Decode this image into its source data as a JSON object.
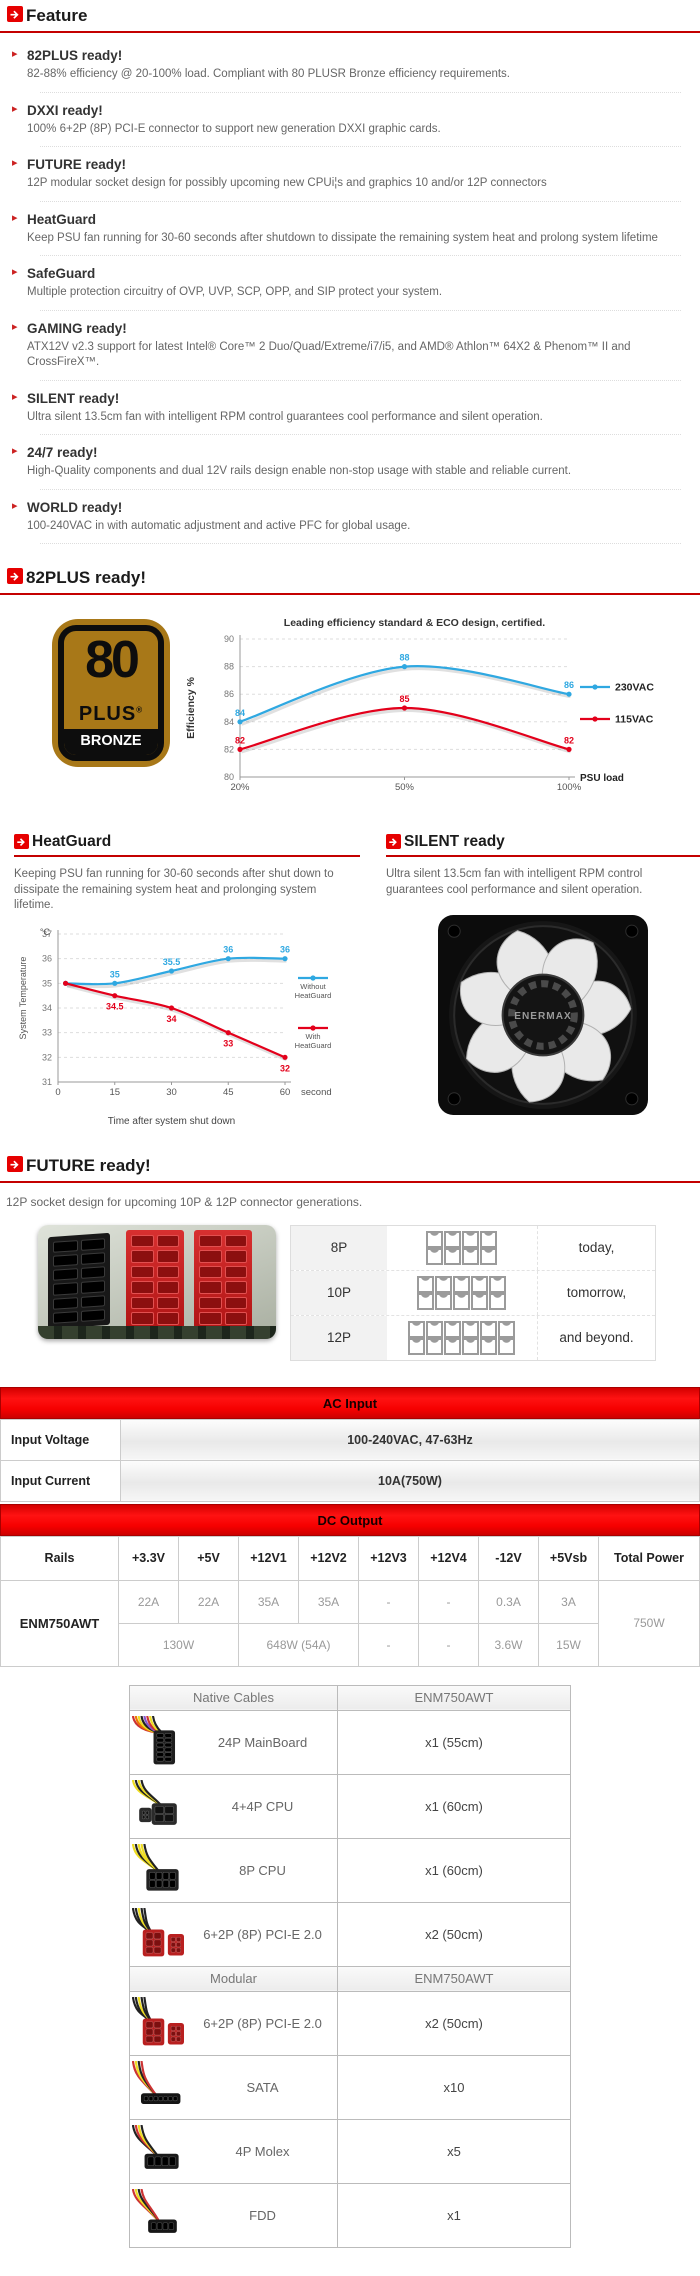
{
  "accent": {
    "red": "#e60000",
    "underline": "#c40000",
    "blue": "#2fa8e1",
    "chart_red": "#e3001b"
  },
  "feature": {
    "title": "Feature",
    "items": [
      {
        "title": "82PLUS ready!",
        "desc": "82-88% efficiency @ 20-100% load. Compliant with 80 PLUSR Bronze efficiency requirements."
      },
      {
        "title": "DXXI ready!",
        "desc": "100% 6+2P (8P) PCI-E connector to support new generation DXXI graphic cards."
      },
      {
        "title": "FUTURE ready!",
        "desc": "12P modular socket design for possibly upcoming new CPUi¦s and graphics 10 and/or 12P connectors"
      },
      {
        "title": "HeatGuard",
        "desc": "Keep PSU fan running for 30-60 seconds after shutdown to dissipate the remaining system heat and prolong system lifetime"
      },
      {
        "title": "SafeGuard",
        "desc": "Multiple protection circuitry of OVP, UVP, SCP, OPP, and SIP protect your system."
      },
      {
        "title": "GAMING ready!",
        "desc": "ATX12V v2.3 support for latest Intel® Core™ 2 Duo/Quad/Extreme/i7/i5, and AMD® Athlon™ 64X2 & Phenom™ II and CrossFireX™."
      },
      {
        "title": "SILENT ready!",
        "desc": "Ultra silent 13.5cm fan with intelligent RPM control guarantees cool performance and silent operation."
      },
      {
        "title": "24/7 ready!",
        "desc": "High-Quality components and dual 12V rails design enable non-stop usage with stable and reliable current."
      },
      {
        "title": "WORLD ready!",
        "desc": "100-240VAC in with automatic adjustment and active PFC for global usage."
      }
    ]
  },
  "plus82": {
    "title": "82PLUS ready!",
    "logo": {
      "line1": "80",
      "line2": "PLUS",
      "reg": "®",
      "line3": "BRONZE"
    }
  },
  "chart_data": [
    {
      "type": "line",
      "title": "Leading efficiency standard & ECO design, certified.",
      "xlabel": "PSU load",
      "ylabel": "Efficiency %",
      "x_ticks": [
        "20%",
        "50%",
        "100%"
      ],
      "x": [
        20,
        50,
        100
      ],
      "y_ticks": [
        80,
        82,
        84,
        86,
        88,
        90
      ],
      "ylim": [
        80,
        90
      ],
      "grid": "dashed",
      "legend_position": "right",
      "series": [
        {
          "name": "230VAC",
          "color": "#2fa8e1",
          "values": [
            84,
            88,
            86
          ],
          "label_side": "above"
        },
        {
          "name": "115VAC",
          "color": "#e3001b",
          "values": [
            82,
            85,
            82
          ],
          "label_side": "above"
        }
      ]
    },
    {
      "type": "line",
      "title": "",
      "xlabel": "Time after system shut down",
      "x_unit": "second",
      "ylabel": "System Temperature",
      "y_unit": "°C",
      "x_ticks": [
        0,
        15,
        30,
        45,
        60
      ],
      "x": [
        2,
        15,
        30,
        45,
        60
      ],
      "y_ticks": [
        31,
        32,
        33,
        34,
        35,
        36,
        37
      ],
      "ylim": [
        31,
        37
      ],
      "grid": "dashed",
      "legend_position": "right",
      "series": [
        {
          "name": "Without HeatGuard",
          "color": "#2fa8e1",
          "values": [
            35,
            35,
            35.5,
            36,
            36
          ],
          "labels": [
            "",
            "35",
            "35.5",
            "36",
            "36"
          ],
          "label_side": "above"
        },
        {
          "name": "With HeatGuard",
          "color": "#e3001b",
          "values": [
            35,
            34.5,
            34,
            33,
            32
          ],
          "labels": [
            "",
            "34.5",
            "34",
            "33",
            "32"
          ],
          "label_side": "below"
        }
      ]
    }
  ],
  "heatguard": {
    "title": "HeatGuard",
    "desc": "Keeping PSU fan running for 30-60 seconds after shut down to dissipate the remaining system heat and prolonging system lifetime."
  },
  "silent": {
    "title": "SILENT ready",
    "desc": "Ultra silent 13.5cm fan with intelligent RPM control guarantees cool performance and silent operation.",
    "fan_label": "ENERMAX"
  },
  "future": {
    "title": "FUTURE ready!",
    "desc": "12P socket design for upcoming 10P & 12P connector generations.",
    "rows": [
      {
        "label": "8P",
        "pins": 8,
        "text": "today,"
      },
      {
        "label": "10P",
        "pins": 10,
        "text": "tomorrow,"
      },
      {
        "label": "12P",
        "pins": 12,
        "text": "and beyond."
      }
    ]
  },
  "ac_input": {
    "title": "AC Input",
    "rows": [
      {
        "label": "Input Voltage",
        "value": "100-240VAC, 47-63Hz"
      },
      {
        "label": "Input Current",
        "value": "10A(750W)"
      }
    ]
  },
  "dc_output": {
    "title": "DC Output",
    "headers": [
      "Rails",
      "+3.3V",
      "+5V",
      "+12V1",
      "+12V2",
      "+12V3",
      "+12V4",
      "-12V",
      "+5Vsb",
      "Total Power"
    ],
    "model": "ENM750AWT",
    "amps": [
      "22A",
      "22A",
      "35A",
      "35A",
      "-",
      "-",
      "0.3A",
      "3A"
    ],
    "watts": {
      "w33": "130W",
      "w12": "648W (54A)",
      "w3": "-",
      "w4": "-",
      "wm12": "3.6W",
      "w5sb": "15W"
    },
    "total": "750W"
  },
  "cables": {
    "native_header": {
      "col1": "Native Cables",
      "col2": "ENM750AWT"
    },
    "native_rows": [
      {
        "name": "24P MainBoard",
        "qty": "x1 (55cm)",
        "icon": "cable-24p"
      },
      {
        "name": "4+4P CPU",
        "qty": "x1 (60cm)",
        "icon": "cable-44p"
      },
      {
        "name": "8P CPU",
        "qty": "x1 (60cm)",
        "icon": "cable-8p"
      },
      {
        "name": "6+2P (8P) PCI-E 2.0",
        "qty": "x2 (50cm)",
        "icon": "cable-pcie"
      }
    ],
    "modular_header": {
      "col1": "Modular",
      "col2": "ENM750AWT"
    },
    "modular_rows": [
      {
        "name": "6+2P (8P) PCI-E 2.0",
        "qty": "x2 (50cm)",
        "icon": "cable-pcie"
      },
      {
        "name": "SATA",
        "qty": "x10",
        "icon": "cable-sata"
      },
      {
        "name": "4P Molex",
        "qty": "x5",
        "icon": "cable-molex"
      },
      {
        "name": "FDD",
        "qty": "x1",
        "icon": "cable-fdd"
      }
    ]
  }
}
